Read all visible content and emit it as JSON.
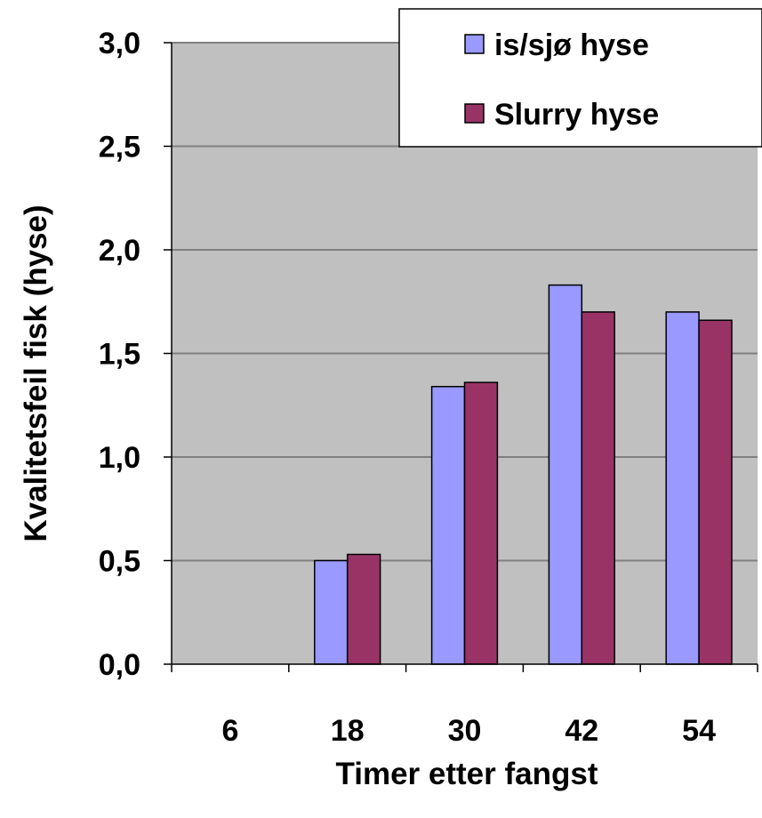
{
  "chart_data": {
    "type": "bar",
    "categories": [
      "6",
      "18",
      "30",
      "42",
      "54"
    ],
    "series": [
      {
        "name": "is/sjø hyse",
        "color": "#9999ff",
        "values": [
          0,
          0.5,
          1.34,
          1.83,
          1.7
        ]
      },
      {
        "name": "Slurry hyse",
        "color": "#993366",
        "values": [
          0,
          0.53,
          1.36,
          1.7,
          1.66
        ]
      }
    ],
    "xlabel": "Timer etter fangst",
    "ylabel": "Kvalitetsfeil fisk (hyse)",
    "ylim": [
      0,
      3.0
    ],
    "yticks": [
      {
        "value": 0,
        "label": "0,0"
      },
      {
        "value": 0.5,
        "label": "0,5"
      },
      {
        "value": 1.0,
        "label": "1,0"
      },
      {
        "value": 1.5,
        "label": "1,5"
      },
      {
        "value": 2.0,
        "label": "2,0"
      },
      {
        "value": 2.5,
        "label": "2,5"
      },
      {
        "value": 3.0,
        "label": "3,0"
      }
    ],
    "grid": true,
    "legend_position": "top-right",
    "plot_background": "#c0c0c0"
  }
}
